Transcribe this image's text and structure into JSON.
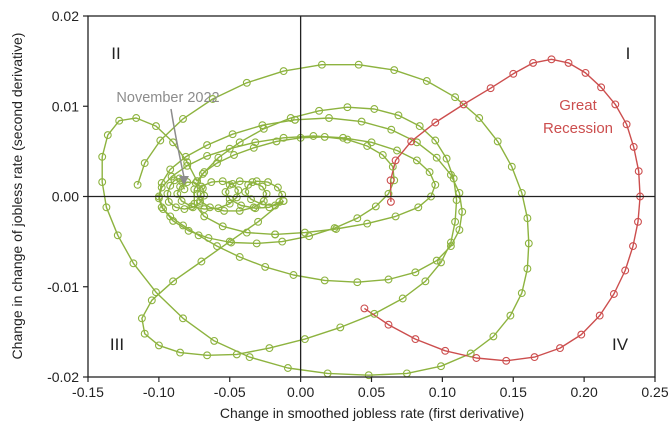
{
  "chart_data": {
    "type": "scatter",
    "title": "",
    "xlabel": "Change in smoothed jobless rate (first derivative)",
    "ylabel": "Change in change of jobless rate (second derivative)",
    "xlim": [
      -0.15,
      0.25
    ],
    "ylim": [
      -0.02,
      0.02
    ],
    "x_ticks": [
      "-0.15",
      "-0.10",
      "-0.05",
      "0.00",
      "0.05",
      "0.10",
      "0.15",
      "0.20",
      "0.25"
    ],
    "y_ticks": [
      "0.02",
      "0.01",
      "0.00",
      "-0.01",
      "-0.02"
    ],
    "quadrants": [
      "I",
      "II",
      "III",
      "IV"
    ],
    "grid": false,
    "colors": {
      "green": "#8db33f",
      "red": "#cc4e4e",
      "annotation_gray": "#8c8c8c",
      "axis": "#222222"
    },
    "annotations": {
      "november_2022": "November 2022",
      "great_recession_line1": "Great",
      "great_recession_line2": "Recession"
    },
    "series": [
      {
        "color": "green",
        "points": [
          [
            -0.082,
            0.0008
          ],
          [
            -0.0835,
            0.0016
          ],
          [
            -0.0855,
            0.002
          ],
          [
            -0.089,
            0.0018
          ],
          [
            -0.092,
            0.0012
          ],
          [
            -0.094,
            0.0003
          ],
          [
            -0.093,
            -0.0006
          ],
          [
            -0.088,
            -0.0012
          ],
          [
            -0.082,
            -0.0014
          ],
          [
            -0.076,
            -0.0012
          ],
          [
            -0.071,
            -0.0007
          ],
          [
            -0.068,
            0.0001
          ],
          [
            -0.069,
            0.0009
          ],
          [
            -0.074,
            0.0015
          ],
          [
            -0.08,
            0.0016
          ],
          [
            -0.085,
            0.0011
          ],
          [
            -0.087,
            0.0003
          ],
          [
            -0.084,
            -0.0005
          ],
          [
            -0.077,
            -0.0011
          ],
          [
            -0.068,
            -0.0014
          ],
          [
            -0.058,
            -0.0013
          ],
          [
            -0.05,
            -0.0008
          ],
          [
            -0.045,
            -0.0001
          ],
          [
            -0.044,
            0.0007
          ],
          [
            -0.048,
            0.0014
          ],
          [
            -0.055,
            0.0017
          ],
          [
            -0.063,
            0.0016
          ],
          [
            -0.07,
            0.0011
          ],
          [
            -0.073,
            0.0003
          ],
          [
            -0.071,
            -0.0005
          ],
          [
            -0.064,
            -0.0012
          ],
          [
            -0.054,
            -0.0016
          ],
          [
            -0.043,
            -0.0016
          ],
          [
            -0.033,
            -0.0012
          ],
          [
            -0.026,
            -0.0005
          ],
          [
            -0.024,
            0.0003
          ],
          [
            -0.027,
            0.0011
          ],
          [
            -0.034,
            0.0016
          ],
          [
            -0.043,
            0.0017
          ],
          [
            -0.05,
            0.0013
          ],
          [
            -0.053,
            0.0005
          ],
          [
            -0.05,
            -0.0003
          ],
          [
            -0.042,
            -0.001
          ],
          [
            -0.032,
            -0.0013
          ],
          [
            -0.022,
            -0.0012
          ],
          [
            -0.015,
            -0.0006
          ],
          [
            -0.013,
            0.0002
          ],
          [
            -0.016,
            0.001
          ],
          [
            -0.023,
            0.0016
          ],
          [
            -0.031,
            0.0017
          ],
          [
            -0.037,
            0.0013
          ],
          [
            -0.039,
            0.0005
          ],
          [
            -0.035,
            -0.0003
          ],
          [
            -0.027,
            -0.0009
          ],
          [
            -0.018,
            -0.001
          ],
          [
            -0.012,
            -0.0005
          ]
        ]
      },
      {
        "color": "green",
        "points": [
          [
            -0.012,
            -0.0005
          ],
          [
            -0.03,
            -0.0028
          ],
          [
            -0.05,
            -0.005
          ],
          [
            -0.07,
            -0.0072
          ],
          [
            -0.09,
            -0.0094
          ],
          [
            -0.105,
            -0.0115
          ],
          [
            -0.112,
            -0.0135
          ],
          [
            -0.11,
            -0.0152
          ],
          [
            -0.1,
            -0.0165
          ],
          [
            -0.085,
            -0.0173
          ],
          [
            -0.066,
            -0.0176
          ],
          [
            -0.045,
            -0.0175
          ],
          [
            -0.022,
            -0.0168
          ],
          [
            0.003,
            -0.0158
          ],
          [
            0.028,
            -0.0145
          ],
          [
            0.052,
            -0.013
          ],
          [
            0.072,
            -0.0113
          ],
          [
            0.088,
            -0.0094
          ],
          [
            0.099,
            -0.0073
          ],
          [
            0.106,
            -0.0051
          ],
          [
            0.109,
            -0.0028
          ],
          [
            0.11,
            -0.0004
          ],
          [
            0.108,
            0.002
          ],
          [
            0.103,
            0.0042
          ],
          [
            0.095,
            0.0062
          ],
          [
            0.084,
            0.0078
          ],
          [
            0.069,
            0.009
          ],
          [
            0.052,
            0.0097
          ],
          [
            0.033,
            0.0099
          ],
          [
            0.013,
            0.0095
          ],
          [
            -0.007,
            0.0087
          ],
          [
            -0.026,
            0.0075
          ],
          [
            -0.043,
            0.006
          ],
          [
            -0.058,
            0.0043
          ],
          [
            -0.069,
            0.0025
          ],
          [
            -0.075,
            0.0008
          ],
          [
            -0.075,
            -0.0008
          ],
          [
            -0.068,
            -0.0022
          ],
          [
            -0.055,
            -0.0033
          ],
          [
            -0.038,
            -0.004
          ],
          [
            -0.018,
            -0.0042
          ]
        ]
      },
      {
        "color": "green",
        "points": [
          [
            -0.018,
            -0.0042
          ],
          [
            0.003,
            -0.004
          ],
          [
            0.025,
            -0.0036
          ],
          [
            0.047,
            -0.003
          ],
          [
            0.067,
            -0.0022
          ],
          [
            0.083,
            -0.0012
          ],
          [
            0.092,
            0.0
          ],
          [
            0.095,
            0.0013
          ],
          [
            0.091,
            0.0027
          ],
          [
            0.082,
            0.004
          ],
          [
            0.068,
            0.0051
          ],
          [
            0.05,
            0.006
          ],
          [
            0.03,
            0.0065
          ],
          [
            0.009,
            0.0067
          ],
          [
            -0.012,
            0.0065
          ],
          [
            -0.032,
            0.006
          ],
          [
            -0.05,
            0.0053
          ],
          [
            -0.066,
            0.0045
          ],
          [
            -0.08,
            0.0034
          ],
          [
            -0.091,
            0.0022
          ],
          [
            -0.098,
            0.001
          ],
          [
            -0.1,
            -0.0002
          ],
          [
            -0.098,
            -0.0012
          ],
          [
            -0.092,
            -0.0022
          ],
          [
            -0.083,
            -0.0032
          ],
          [
            -0.072,
            -0.0043
          ],
          [
            -0.059,
            -0.0055
          ],
          [
            -0.043,
            -0.0067
          ],
          [
            -0.025,
            -0.0078
          ],
          [
            -0.005,
            -0.0087
          ],
          [
            0.017,
            -0.0093
          ],
          [
            0.04,
            -0.0095
          ],
          [
            0.062,
            -0.0092
          ],
          [
            0.081,
            -0.0084
          ],
          [
            0.096,
            -0.0071
          ],
          [
            0.106,
            -0.0055
          ],
          [
            0.112,
            -0.0037
          ],
          [
            0.114,
            -0.0017
          ],
          [
            0.112,
            0.0004
          ],
          [
            0.106,
            0.0024
          ],
          [
            0.096,
            0.0043
          ],
          [
            0.082,
            0.006
          ],
          [
            0.064,
            0.0074
          ],
          [
            0.043,
            0.0083
          ],
          [
            0.02,
            0.0087
          ],
          [
            -0.004,
            0.0085
          ]
        ]
      },
      {
        "color": "green",
        "points": [
          [
            -0.004,
            0.0085
          ],
          [
            -0.027,
            0.0079
          ],
          [
            -0.048,
            0.0069
          ],
          [
            -0.066,
            0.0057
          ],
          [
            -0.081,
            0.0044
          ],
          [
            -0.092,
            0.003
          ],
          [
            -0.098,
            0.0015
          ],
          [
            -0.1,
            0.0
          ],
          [
            -0.097,
            -0.0014
          ],
          [
            -0.09,
            -0.0027
          ],
          [
            -0.079,
            -0.0038
          ],
          [
            -0.065,
            -0.0046
          ],
          [
            -0.049,
            -0.0051
          ],
          [
            -0.031,
            -0.0052
          ],
          [
            -0.013,
            -0.005
          ],
          [
            0.006,
            -0.0044
          ],
          [
            0.024,
            -0.0035
          ],
          [
            0.04,
            -0.0024
          ],
          [
            0.053,
            -0.0011
          ],
          [
            0.062,
            0.0003
          ],
          [
            0.066,
            0.0018
          ],
          [
            0.065,
            0.0033
          ],
          [
            0.058,
            0.0046
          ],
          [
            0.047,
            0.0056
          ],
          [
            0.033,
            0.0063
          ],
          [
            0.017,
            0.0066
          ],
          [
            0.0,
            0.0065
          ],
          [
            -0.017,
            0.0061
          ],
          [
            -0.033,
            0.0054
          ],
          [
            -0.047,
            0.0046
          ],
          [
            -0.059,
            0.0037
          ],
          [
            -0.068,
            0.0027
          ],
          [
            -0.073,
            0.0017
          ]
        ]
      },
      {
        "color": "green",
        "points": [
          [
            -0.073,
            0.0017
          ],
          [
            -0.08,
            0.0038
          ],
          [
            -0.09,
            0.006
          ],
          [
            -0.102,
            0.0078
          ],
          [
            -0.116,
            0.0087
          ],
          [
            -0.128,
            0.0084
          ],
          [
            -0.136,
            0.0068
          ],
          [
            -0.14,
            0.0044
          ],
          [
            -0.14,
            0.0016
          ],
          [
            -0.137,
            -0.0012
          ],
          [
            -0.129,
            -0.0043
          ],
          [
            -0.118,
            -0.0074
          ],
          [
            -0.102,
            -0.0106
          ],
          [
            -0.083,
            -0.0135
          ],
          [
            -0.061,
            -0.016
          ],
          [
            -0.036,
            -0.0178
          ],
          [
            -0.009,
            -0.019
          ],
          [
            0.019,
            -0.0196
          ],
          [
            0.048,
            -0.0198
          ],
          [
            0.075,
            -0.0196
          ],
          [
            0.099,
            -0.0188
          ],
          [
            0.12,
            -0.0174
          ],
          [
            0.136,
            -0.0155
          ],
          [
            0.148,
            -0.0132
          ],
          [
            0.156,
            -0.0107
          ],
          [
            0.16,
            -0.008
          ],
          [
            0.161,
            -0.0052
          ],
          [
            0.16,
            -0.0024
          ],
          [
            0.156,
            0.0004
          ],
          [
            0.149,
            0.0033
          ],
          [
            0.139,
            0.0061
          ],
          [
            0.126,
            0.0087
          ],
          [
            0.109,
            0.011
          ],
          [
            0.089,
            0.0128
          ],
          [
            0.066,
            0.014
          ],
          [
            0.041,
            0.0146
          ],
          [
            0.015,
            0.0146
          ],
          [
            -0.012,
            0.0139
          ],
          [
            -0.038,
            0.0126
          ],
          [
            -0.062,
            0.0108
          ],
          [
            -0.083,
            0.0086
          ],
          [
            -0.099,
            0.0062
          ],
          [
            -0.11,
            0.0037
          ],
          [
            -0.115,
            0.0013
          ]
        ]
      },
      {
        "color": "red",
        "points": [
          [
            0.0637,
            -0.0006
          ],
          [
            0.0635,
            0.0018
          ],
          [
            0.067,
            0.004
          ],
          [
            0.078,
            0.0061
          ],
          [
            0.095,
            0.0082
          ],
          [
            0.115,
            0.0102
          ],
          [
            0.134,
            0.012
          ],
          [
            0.15,
            0.0136
          ],
          [
            0.164,
            0.0148
          ],
          [
            0.177,
            0.0152
          ],
          [
            0.189,
            0.0148
          ],
          [
            0.201,
            0.0137
          ],
          [
            0.212,
            0.0121
          ],
          [
            0.222,
            0.0102
          ],
          [
            0.23,
            0.008
          ],
          [
            0.235,
            0.0055
          ],
          [
            0.2385,
            0.0028
          ],
          [
            0.2395,
            0.0
          ],
          [
            0.238,
            -0.0028
          ],
          [
            0.2345,
            -0.0055
          ],
          [
            0.229,
            -0.0082
          ],
          [
            0.221,
            -0.0108
          ],
          [
            0.211,
            -0.0132
          ],
          [
            0.198,
            -0.0153
          ],
          [
            0.183,
            -0.0168
          ],
          [
            0.165,
            -0.0178
          ],
          [
            0.145,
            -0.0182
          ],
          [
            0.124,
            -0.0179
          ],
          [
            0.102,
            -0.0171
          ],
          [
            0.081,
            -0.0158
          ],
          [
            0.062,
            -0.0142
          ],
          [
            0.045,
            -0.0124
          ]
        ]
      }
    ]
  }
}
